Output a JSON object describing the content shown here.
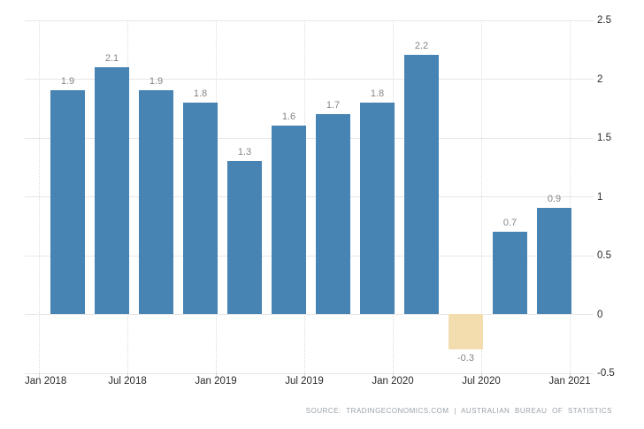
{
  "chart_data": {
    "type": "bar",
    "title": "",
    "categories": [
      "Q1 2018",
      "Q2 2018",
      "Q3 2018",
      "Q4 2018",
      "Q1 2019",
      "Q2 2019",
      "Q3 2019",
      "Q4 2019",
      "Q1 2020",
      "Q2 2020",
      "Q3 2020",
      "Q4 2020"
    ],
    "values": [
      1.9,
      2.1,
      1.9,
      1.8,
      1.3,
      1.6,
      1.7,
      1.8,
      2.2,
      -0.3,
      0.7,
      0.9
    ],
    "bar_labels": [
      "1.9",
      "2.1",
      "1.9",
      "1.8",
      "1.3",
      "1.6",
      "1.7",
      "1.8",
      "2.2",
      "-0.3",
      "0.7",
      "0.9"
    ],
    "x_tick_labels": [
      "Jan 2018",
      "Jul 2018",
      "Jan 2019",
      "Jul 2019",
      "Jan 2020",
      "Jul 2020",
      "Jan 2021"
    ],
    "y_tick_labels": [
      "2.5",
      "2",
      "1.5",
      "1",
      "0.5",
      "0",
      "-0.5"
    ],
    "y_tick_values": [
      2.5,
      2,
      1.5,
      1,
      0.5,
      0,
      -0.5
    ],
    "ylim": [
      -0.5,
      2.5
    ],
    "xlabel": "",
    "ylabel": "",
    "legend_position": "none",
    "grid": {
      "horizontal": "solid",
      "vertical": "dotted"
    },
    "colors": {
      "positive_bar": "#4784b4",
      "negative_bar": "#f3ddae",
      "grid_line": "#e7e7e7",
      "value_label": "#858585",
      "axis_label": "#2b2b2b",
      "source_text": "#9aa1a8"
    }
  },
  "footer": {
    "source_text": "SOURCE: TRADINGECONOMICS.COM | AUSTRALIAN BUREAU OF STATISTICS"
  }
}
